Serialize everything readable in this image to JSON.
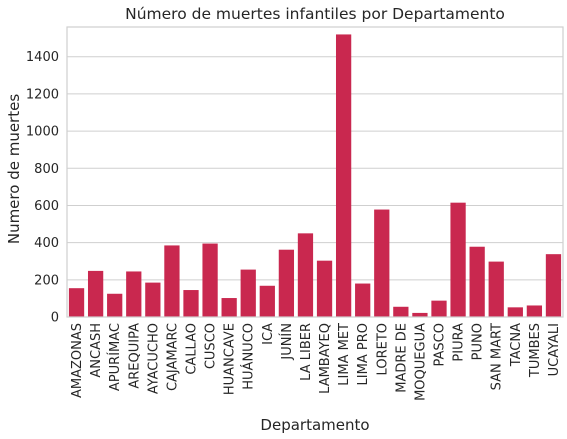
{
  "chart_data": {
    "type": "bar",
    "title": "Número de muertes infantiles por Departamento",
    "xlabel": "Departamento",
    "ylabel": "Numero de muertes",
    "ylim": [
      0,
      1560
    ],
    "yticks": [
      0,
      200,
      400,
      600,
      800,
      1000,
      1200,
      1400
    ],
    "grid": true,
    "bar_color": "#c9284f",
    "categories": [
      "AMAZONAS",
      "ANCASH",
      "APURÍMAC",
      "AREQUIPA",
      "AYACUCHO",
      "CAJAMARC",
      "CALLAO",
      "CUSCO",
      "HUANCAVE",
      "HUÁNUCO",
      "ICA",
      "JUNÍN",
      "LA LIBER",
      "LAMBAYEQ",
      "LIMA MET",
      "LIMA PRO",
      "LORETO",
      "MADRE DE",
      "MOQUEGUA",
      "PASCO",
      "PIURA",
      "PUNO",
      "SAN MART",
      "TACNA",
      "TUMBES",
      "UCAYALI"
    ],
    "values": [
      155,
      248,
      125,
      245,
      185,
      385,
      145,
      395,
      102,
      255,
      168,
      362,
      450,
      303,
      1520,
      180,
      578,
      55,
      22,
      88,
      615,
      378,
      298,
      52,
      62,
      338
    ]
  }
}
